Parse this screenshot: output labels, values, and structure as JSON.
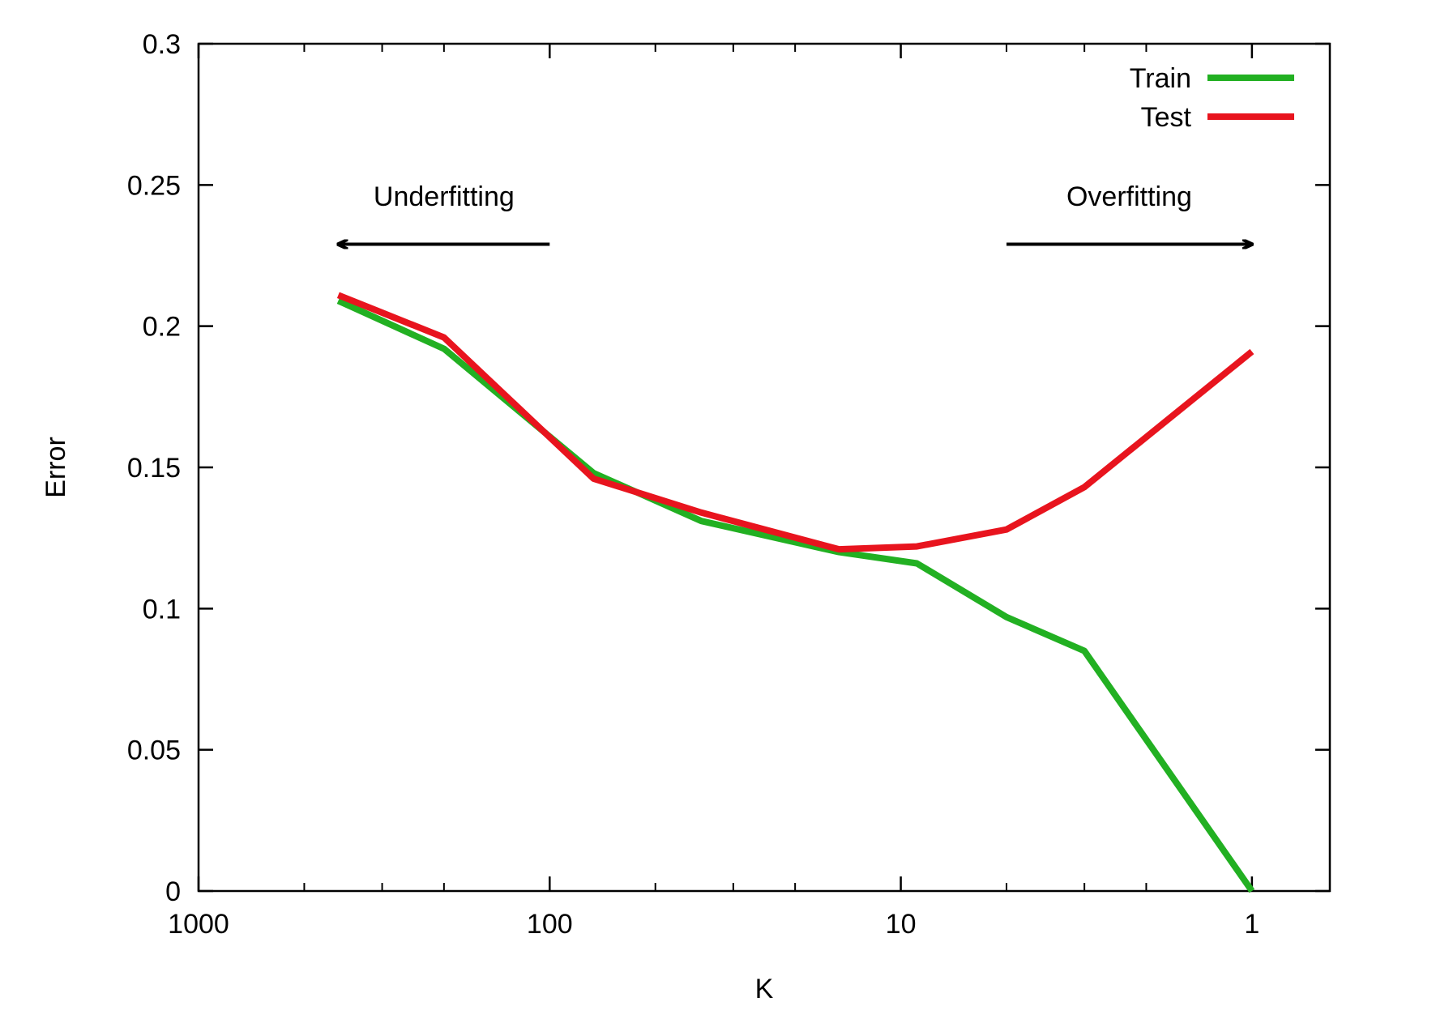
{
  "chart_data": {
    "type": "line",
    "title": "",
    "xlabel": "K",
    "ylabel": "Error",
    "x_scale": "log",
    "x_reversed": true,
    "xlim": [
      1000,
      0.6
    ],
    "ylim": [
      0,
      0.3
    ],
    "x_ticks": [
      1000,
      100,
      10,
      1
    ],
    "x_tick_labels": [
      "1000",
      "100",
      "10",
      "1"
    ],
    "y_ticks": [
      0,
      0.05,
      0.1,
      0.15,
      0.2,
      0.25,
      0.3
    ],
    "y_tick_labels": [
      "0",
      "0.05",
      "0.1",
      "0.15",
      "0.2",
      "0.25",
      "0.3"
    ],
    "grid": false,
    "legend_position": "top-right",
    "series": [
      {
        "name": "Train",
        "color": "#22b022",
        "x": [
          400,
          200,
          75,
          37,
          15,
          9,
          5,
          3,
          1
        ],
        "y": [
          0.209,
          0.192,
          0.148,
          0.131,
          0.12,
          0.116,
          0.097,
          0.085,
          0
        ]
      },
      {
        "name": "Test",
        "color": "#e8141e",
        "x": [
          400,
          200,
          75,
          37,
          15,
          9,
          5,
          3,
          1
        ],
        "y": [
          0.211,
          0.196,
          0.146,
          0.134,
          0.121,
          0.122,
          0.128,
          0.143,
          0.191
        ]
      }
    ],
    "annotations": [
      {
        "text": "Underfitting",
        "direction": "left",
        "x_from": 100,
        "x_to": 400,
        "y": 0.229,
        "label_y": 0.245
      },
      {
        "text": "Overfitting",
        "direction": "right",
        "x_from": 5,
        "x_to": 1,
        "y": 0.229,
        "label_y": 0.245
      }
    ]
  }
}
